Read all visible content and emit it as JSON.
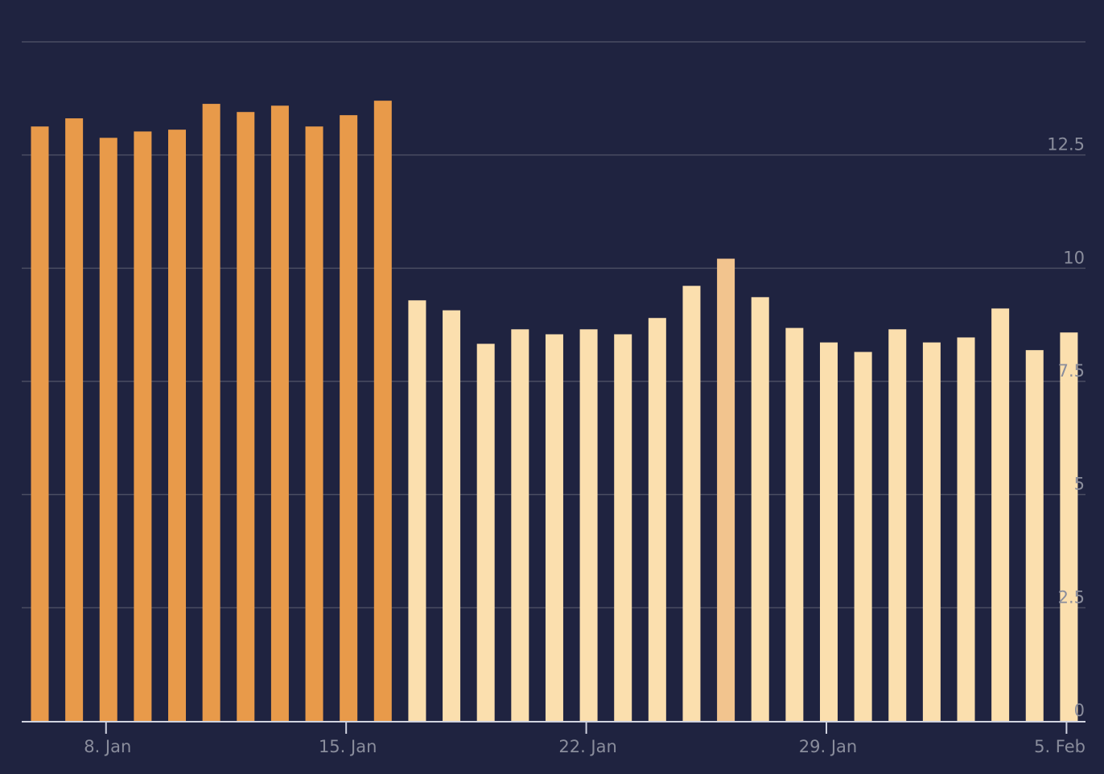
{
  "chart_data": {
    "type": "bar",
    "categories": [
      null,
      null,
      "8. Jan",
      null,
      null,
      null,
      null,
      null,
      null,
      "15. Jan",
      null,
      null,
      null,
      null,
      null,
      null,
      "22. Jan",
      null,
      null,
      null,
      null,
      null,
      null,
      "29. Jan",
      null,
      null,
      null,
      null,
      null,
      null,
      "5. Feb"
    ],
    "values": [
      13.13,
      13.31,
      12.88,
      13.02,
      13.06,
      13.63,
      13.45,
      13.59,
      13.13,
      13.38,
      13.7,
      9.29,
      9.07,
      8.33,
      8.65,
      8.54,
      8.65,
      8.54,
      8.9,
      9.61,
      10.21,
      9.36,
      8.68,
      8.36,
      8.15,
      8.65,
      8.36,
      8.47,
      9.11,
      8.19,
      8.58
    ],
    "colors": [
      "#e89a4a",
      "#e89a4a",
      "#e89a4a",
      "#e89a4a",
      "#e89a4a",
      "#e89a4a",
      "#e89a4a",
      "#e89a4a",
      "#e89a4a",
      "#e89a4a",
      "#e89a4a",
      "#fbdfae",
      "#fbdfae",
      "#fbdfae",
      "#fbdfae",
      "#fbdfae",
      "#fbdfae",
      "#fbdfae",
      "#fbdfae",
      "#fbdfae",
      "#f2c48e",
      "#fbdfae",
      "#fbdfae",
      "#fbdfae",
      "#fbdfae",
      "#fbdfae",
      "#fbdfae",
      "#fbdfae",
      "#fbdfae",
      "#fbdfae",
      "#fbdfae"
    ],
    "ylim": [
      0,
      15
    ],
    "yticks": [
      0,
      2.5,
      5,
      7.5,
      10,
      12.5
    ],
    "grid": true
  }
}
